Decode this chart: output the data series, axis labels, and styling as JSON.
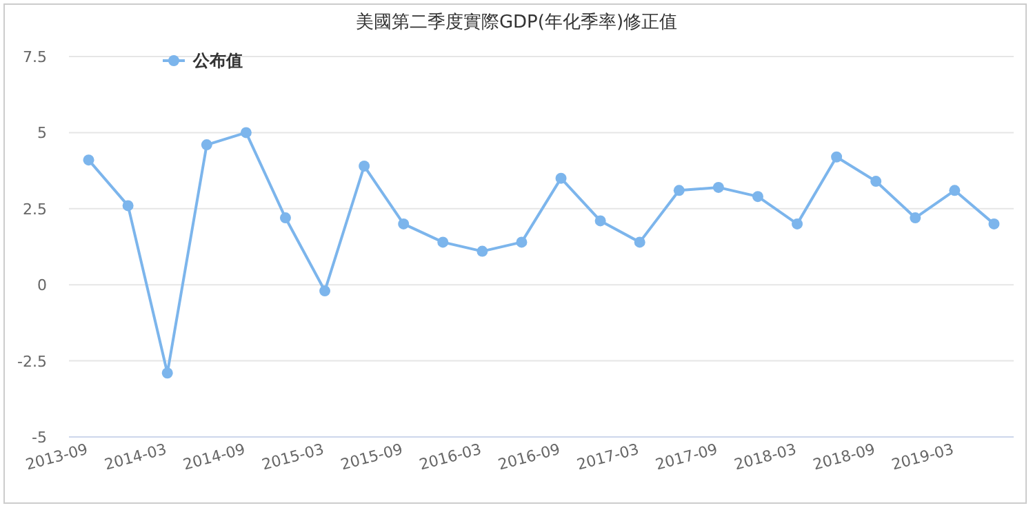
{
  "chart_data": {
    "type": "line",
    "title": "美國第二季度實際GDP(年化季率)修正值",
    "categories": [
      "2013-09",
      null,
      "2014-03",
      null,
      "2014-09",
      null,
      "2015-03",
      null,
      "2015-09",
      null,
      "2016-03",
      null,
      "2016-09",
      null,
      "2017-03",
      null,
      "2017-09",
      null,
      "2018-03",
      null,
      "2018-09",
      null,
      "2019-03",
      null
    ],
    "series": [
      {
        "name": "公布值",
        "color": "#7cb5ec",
        "values": [
          4.1,
          2.6,
          -2.9,
          4.6,
          5.0,
          2.2,
          -0.2,
          3.9,
          2.0,
          1.4,
          1.1,
          1.4,
          3.5,
          2.1,
          1.4,
          3.1,
          3.2,
          2.9,
          2.0,
          4.2,
          3.4,
          2.2,
          3.1,
          2.0
        ]
      }
    ],
    "ylim": [
      -5,
      7.5
    ],
    "yticks": [
      -5,
      -2.5,
      0,
      2.5,
      5,
      7.5
    ],
    "grid": "y",
    "legend": "top left",
    "marker": "circle",
    "line_style": "solid"
  }
}
